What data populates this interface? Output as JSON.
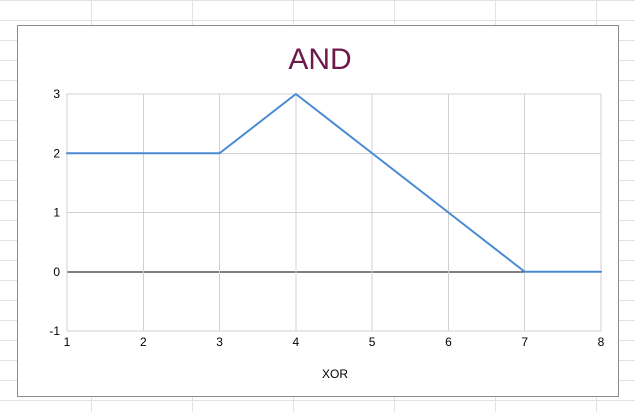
{
  "chart_data": {
    "type": "line",
    "title": "AND",
    "xlabel": "XOR",
    "ylabel": "",
    "x": [
      1,
      2,
      3,
      4,
      5,
      6,
      7,
      8
    ],
    "series": [
      {
        "values": [
          2,
          2,
          2,
          3,
          2,
          1,
          0,
          0
        ]
      }
    ],
    "xlim": [
      1,
      8
    ],
    "ylim": [
      -1,
      3
    ],
    "xticks": [
      "1",
      "2",
      "3",
      "4",
      "5",
      "6",
      "7",
      "8"
    ],
    "yticks": [
      "-1",
      "0",
      "1",
      "2",
      "3"
    ],
    "grid": true,
    "legend": "none",
    "colors": {
      "line": "#4a8ad4",
      "title": "#6d1a4a",
      "grid": "#d0d0d0",
      "zero_line": "#000000"
    }
  }
}
